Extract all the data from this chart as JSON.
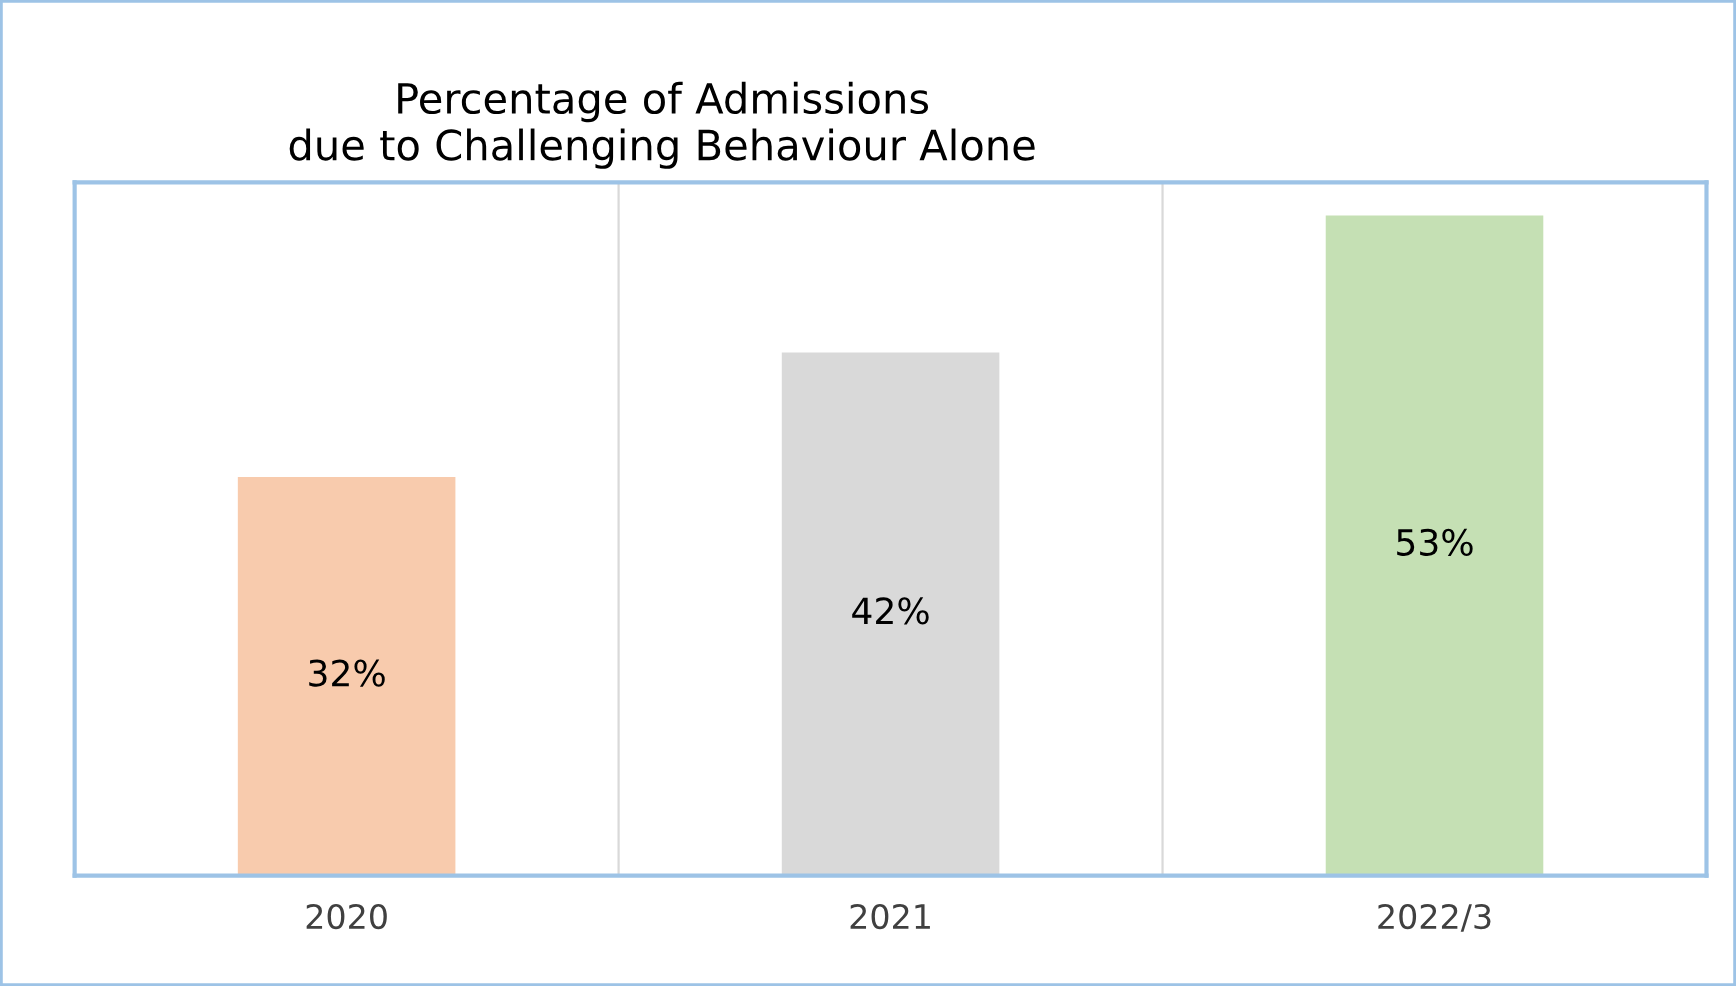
{
  "chart_data": {
    "type": "bar",
    "title": "Percentage of Admissions\ndue to Challenging Behaviour Alone",
    "categories": [
      "2020",
      "2021",
      "2022/3"
    ],
    "values": [
      32,
      42,
      53
    ],
    "colors": [
      "#f8cbad",
      "#d9d9d9",
      "#c5e0b4"
    ],
    "value_labels": [
      "32%",
      "42%",
      "53%"
    ],
    "grid": "x",
    "tick_labels": "x"
  }
}
